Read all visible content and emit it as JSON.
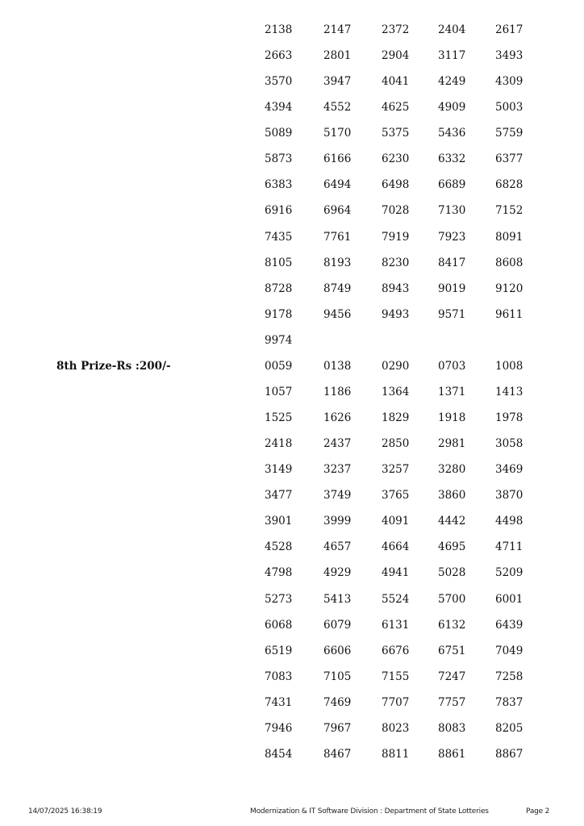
{
  "sections": [
    {
      "label": "",
      "numbers": [
        "2138",
        "2147",
        "2372",
        "2404",
        "2617",
        "2663",
        "2801",
        "2904",
        "3117",
        "3493",
        "3570",
        "3947",
        "4041",
        "4249",
        "4309",
        "4394",
        "4552",
        "4625",
        "4909",
        "5003",
        "5089",
        "5170",
        "5375",
        "5436",
        "5759",
        "5873",
        "6166",
        "6230",
        "6332",
        "6377",
        "6383",
        "6494",
        "6498",
        "6689",
        "6828",
        "6916",
        "6964",
        "7028",
        "7130",
        "7152",
        "7435",
        "7761",
        "7919",
        "7923",
        "8091",
        "8105",
        "8193",
        "8230",
        "8417",
        "8608",
        "8728",
        "8749",
        "8943",
        "9019",
        "9120",
        "9178",
        "9456",
        "9493",
        "9571",
        "9611",
        "9974"
      ]
    },
    {
      "label": "8th Prize-Rs :200/-",
      "numbers": [
        "0059",
        "0138",
        "0290",
        "0703",
        "1008",
        "1057",
        "1186",
        "1364",
        "1371",
        "1413",
        "1525",
        "1626",
        "1829",
        "1918",
        "1978",
        "2418",
        "2437",
        "2850",
        "2981",
        "3058",
        "3149",
        "3237",
        "3257",
        "3280",
        "3469",
        "3477",
        "3749",
        "3765",
        "3860",
        "3870",
        "3901",
        "3999",
        "4091",
        "4442",
        "4498",
        "4528",
        "4657",
        "4664",
        "4695",
        "4711",
        "4798",
        "4929",
        "4941",
        "5028",
        "5209",
        "5273",
        "5413",
        "5524",
        "5700",
        "6001",
        "6068",
        "6079",
        "6131",
        "6132",
        "6439",
        "6519",
        "6606",
        "6676",
        "6751",
        "7049",
        "7083",
        "7105",
        "7155",
        "7247",
        "7258",
        "7431",
        "7469",
        "7707",
        "7757",
        "7837",
        "7946",
        "7967",
        "8023",
        "8083",
        "8205",
        "8454",
        "8467",
        "8811",
        "8861",
        "8867"
      ]
    }
  ],
  "footer": {
    "timestamp": "14/07/2025 16:38:19",
    "organization": "Modernization & IT Software Division : Department of State Lotteries",
    "page": "Page 2"
  }
}
